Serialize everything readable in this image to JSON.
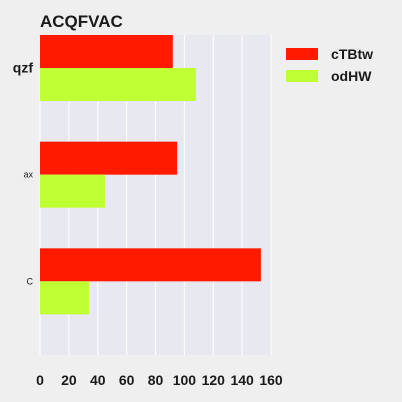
{
  "chart_data": {
    "type": "bar",
    "orientation": "horizontal",
    "title": "ACQFVAC",
    "xlabel": "",
    "ylabel": "",
    "categories": [
      "qzf",
      "ax",
      "C"
    ],
    "series": [
      {
        "name": "cTBtw",
        "color": "#ff1a00",
        "values": [
          92,
          95,
          153
        ]
      },
      {
        "name": "odHW",
        "color": "#c0ff33",
        "values": [
          108,
          45,
          34
        ]
      }
    ],
    "xlim": [
      0,
      160
    ],
    "xticks": [
      0,
      20,
      40,
      60,
      80,
      100,
      120,
      140,
      160
    ],
    "grid": true,
    "legend_position": "top-right"
  }
}
